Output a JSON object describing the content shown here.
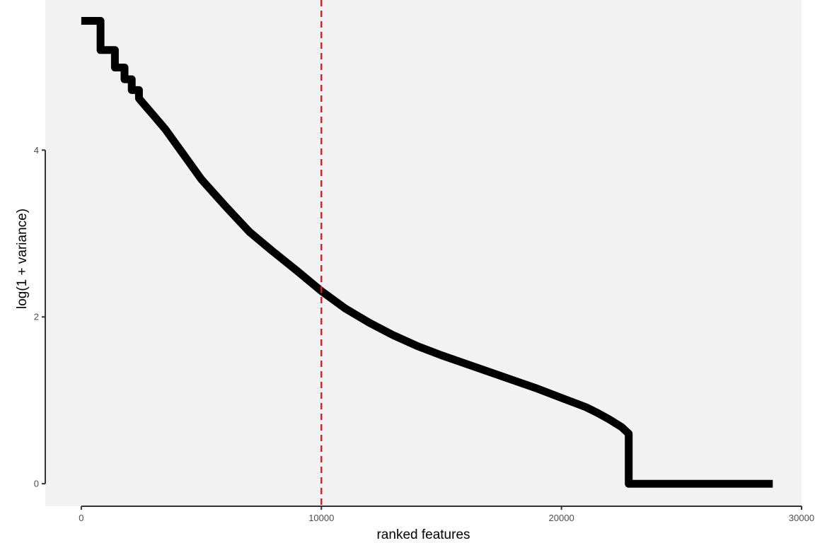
{
  "chart_data": {
    "type": "line",
    "title": "",
    "xlabel": "ranked features",
    "ylabel": "log(1 + variance)",
    "xlim": [
      -1500,
      30000
    ],
    "ylim": [
      -0.27,
      5.8
    ],
    "x_ticks": [
      0,
      10000,
      20000,
      30000
    ],
    "x_tick_labels": [
      "0",
      "10000",
      "20000",
      "30000"
    ],
    "y_ticks": [
      0,
      2,
      4
    ],
    "y_tick_labels": [
      "0",
      "2",
      "4"
    ],
    "grid": false,
    "panel_background": "#f2f2f2",
    "series": [
      {
        "color": "#000000",
        "x": [
          1,
          800,
          800,
          1400,
          1400,
          1800,
          1800,
          2100,
          2100,
          2400,
          2400,
          2700,
          3000,
          3500,
          4000,
          5000,
          6000,
          7000,
          8000,
          9000,
          10000,
          11000,
          12000,
          13000,
          14000,
          15000,
          16000,
          17000,
          18000,
          19000,
          20000,
          21000,
          21500,
          22000,
          22500,
          22800,
          22800,
          25000,
          28800
        ],
        "y": [
          5.55,
          5.55,
          5.2,
          5.2,
          4.99,
          4.99,
          4.85,
          4.85,
          4.72,
          4.72,
          4.62,
          4.52,
          4.42,
          4.25,
          4.05,
          3.65,
          3.33,
          3.02,
          2.78,
          2.55,
          2.31,
          2.1,
          1.93,
          1.78,
          1.65,
          1.54,
          1.44,
          1.34,
          1.24,
          1.14,
          1.03,
          0.92,
          0.85,
          0.77,
          0.68,
          0.6,
          0.0,
          0.0,
          0.0
        ]
      }
    ],
    "reference_lines": [
      {
        "axis": "x",
        "value": 10000,
        "color": "#e41a1c",
        "style": "dashed"
      }
    ]
  }
}
